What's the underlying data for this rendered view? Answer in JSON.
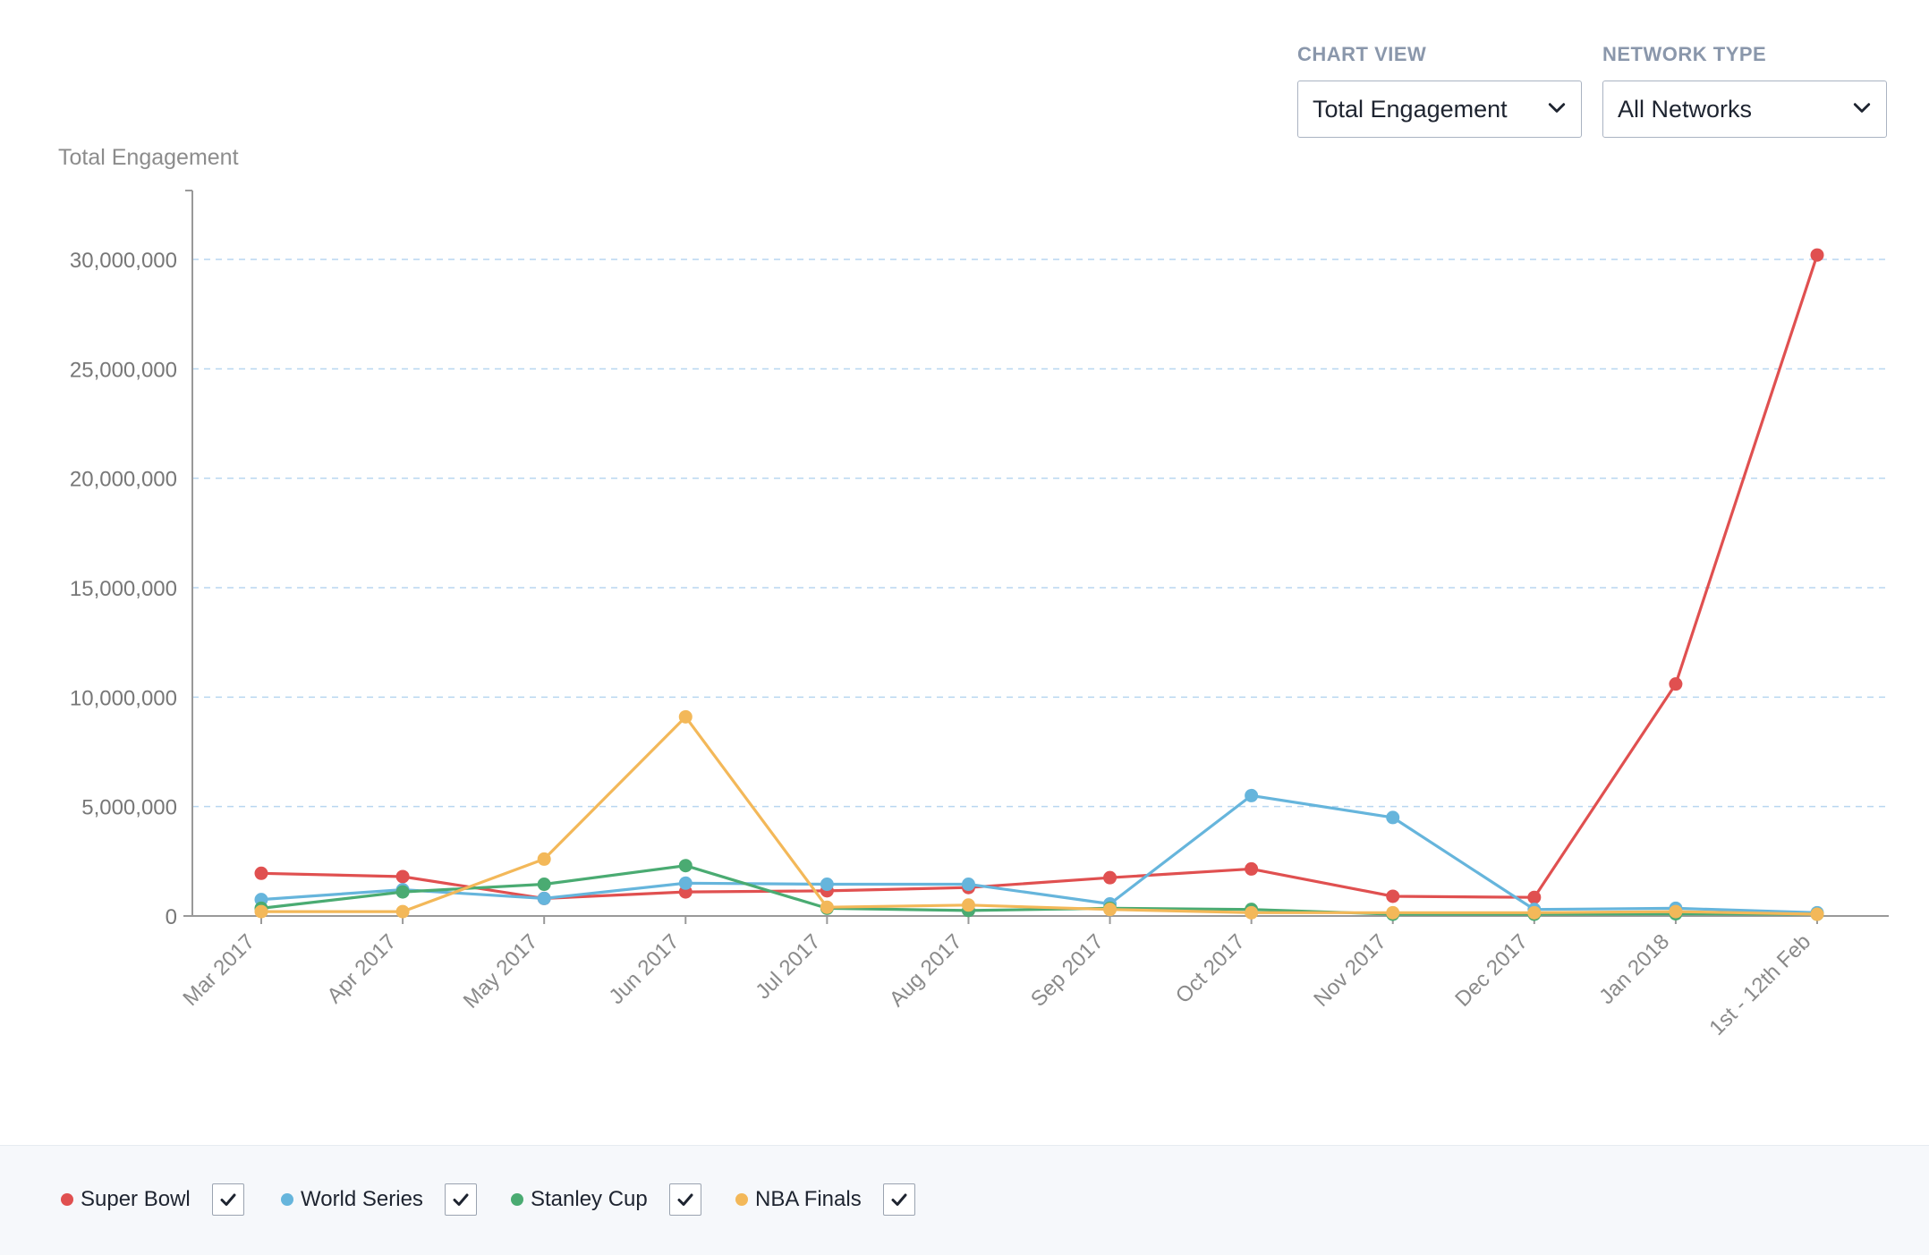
{
  "controls": {
    "chart_view": {
      "label": "CHART VIEW",
      "value": "Total Engagement"
    },
    "network_type": {
      "label": "NETWORK TYPE",
      "value": "All Networks"
    }
  },
  "icons": {
    "dropdown": "chevron-down-icon",
    "checkbox": "checkmark-icon"
  },
  "chart_data": {
    "type": "line",
    "title": "",
    "xlabel": "",
    "ylabel": "Total Engagement",
    "ylim": [
      0,
      33000000
    ],
    "yticks": [
      0,
      5000000,
      10000000,
      15000000,
      20000000,
      25000000,
      30000000
    ],
    "ytick_labels": [
      "0",
      "5,000,000",
      "10,000,000",
      "15,000,000",
      "20,000,000",
      "25,000,000",
      "30,000,000"
    ],
    "grid": "horizontal dashed",
    "legend_position": "bottom",
    "categories": [
      "Mar 2017",
      "Apr 2017",
      "May 2017",
      "Jun 2017",
      "Jul 2017",
      "Aug 2017",
      "Sep 2017",
      "Oct 2017",
      "Nov 2017",
      "Dec 2017",
      "Jan 2018",
      "1st - 12th Feb"
    ],
    "series": [
      {
        "name": "Super Bowl",
        "color": "#e05050",
        "checked": true,
        "values": [
          1950000,
          1800000,
          800000,
          1100000,
          1150000,
          1300000,
          1750000,
          2150000,
          900000,
          850000,
          10600000,
          30200000
        ]
      },
      {
        "name": "World Series",
        "color": "#66b5dc",
        "checked": true,
        "values": [
          750000,
          1200000,
          800000,
          1500000,
          1450000,
          1450000,
          550000,
          5500000,
          4500000,
          300000,
          350000,
          150000
        ]
      },
      {
        "name": "Stanley Cup",
        "color": "#4aab72",
        "checked": true,
        "values": [
          350000,
          1100000,
          1450000,
          2300000,
          350000,
          250000,
          350000,
          300000,
          80000,
          80000,
          100000,
          80000
        ]
      },
      {
        "name": "NBA Finals",
        "color": "#f3b859",
        "checked": true,
        "values": [
          200000,
          200000,
          2600000,
          9100000,
          400000,
          500000,
          300000,
          150000,
          150000,
          150000,
          200000,
          80000
        ]
      }
    ]
  }
}
